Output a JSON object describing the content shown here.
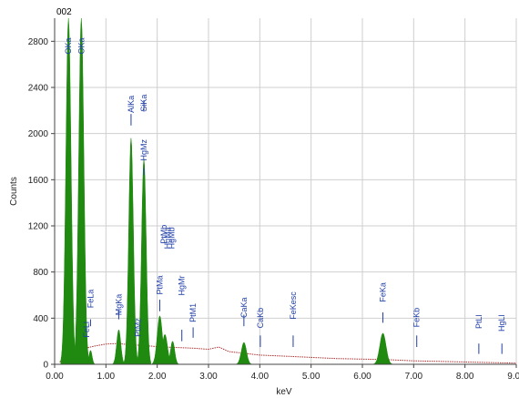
{
  "chart_data": {
    "type": "area",
    "sample_label": "002",
    "xlabel": "keV",
    "ylabel": "Counts",
    "xlim": [
      0.0,
      9.0
    ],
    "ylim": [
      0,
      3000
    ],
    "x_ticks": [
      "0.00",
      "1.00",
      "2.00",
      "3.00",
      "4.00",
      "5.00",
      "6.00",
      "7.00",
      "8.00",
      "9.00"
    ],
    "y_ticks": [
      "0",
      "400",
      "800",
      "1200",
      "1600",
      "2000",
      "2400",
      "2800"
    ],
    "grid": true,
    "colors": {
      "spectrum_fill": "#1f8a0f",
      "background_trace": "#b03030",
      "grid": "#cfcfcf",
      "peak_label": "#1f3ea8"
    },
    "series": [
      {
        "type": "filled-peaks",
        "peaks": [
          {
            "x": 0.27,
            "height": 3000,
            "width": 0.05
          },
          {
            "x": 0.52,
            "height": 3000,
            "width": 0.05
          },
          {
            "x": 0.7,
            "height": 120,
            "width": 0.03
          },
          {
            "x": 1.25,
            "height": 300,
            "width": 0.04
          },
          {
            "x": 1.49,
            "height": 1960,
            "width": 0.045
          },
          {
            "x": 1.74,
            "height": 1780,
            "width": 0.045
          },
          {
            "x": 2.05,
            "height": 420,
            "width": 0.05
          },
          {
            "x": 2.15,
            "height": 260,
            "width": 0.05
          },
          {
            "x": 2.3,
            "height": 200,
            "width": 0.04
          },
          {
            "x": 3.69,
            "height": 190,
            "width": 0.05
          },
          {
            "x": 6.4,
            "height": 270,
            "width": 0.06
          }
        ]
      },
      {
        "type": "background",
        "points": [
          [
            0.1,
            20
          ],
          [
            0.2,
            60
          ],
          [
            0.4,
            110
          ],
          [
            0.6,
            140
          ],
          [
            0.8,
            160
          ],
          [
            1.0,
            175
          ],
          [
            1.2,
            180
          ],
          [
            1.5,
            170
          ],
          [
            1.8,
            160
          ],
          [
            2.1,
            150
          ],
          [
            2.4,
            145
          ],
          [
            2.7,
            140
          ],
          [
            3.0,
            130
          ],
          [
            3.2,
            150
          ],
          [
            3.4,
            110
          ],
          [
            3.6,
            100
          ],
          [
            4.0,
            80
          ],
          [
            4.5,
            70
          ],
          [
            5.0,
            60
          ],
          [
            5.5,
            50
          ],
          [
            6.0,
            45
          ],
          [
            6.5,
            40
          ],
          [
            7.0,
            30
          ],
          [
            7.5,
            25
          ],
          [
            8.0,
            20
          ],
          [
            8.5,
            15
          ],
          [
            9.0,
            10
          ]
        ]
      }
    ],
    "annotations": [
      {
        "label": "OKa",
        "x": 0.27,
        "top_y": 2830,
        "line_y": [
          0,
          0
        ]
      },
      {
        "label": "OKa",
        "x": 0.52,
        "top_y": 2830,
        "line_y": [
          0,
          0
        ]
      },
      {
        "label": "FeLa",
        "x": 0.7,
        "top_y": 650,
        "line_y": [
          330,
          390
        ]
      },
      {
        "label": "FeLl",
        "x": 0.62,
        "top_y": 370,
        "line_y": [
          0,
          0
        ]
      },
      {
        "label": "MgKa",
        "x": 1.25,
        "top_y": 610,
        "line_y": [
          390,
          470
        ]
      },
      {
        "label": "PtMz",
        "x": 1.62,
        "top_y": 400,
        "line_y": [
          0,
          0
        ]
      },
      {
        "label": "AlKa",
        "x": 1.49,
        "top_y": 2330,
        "line_y": [
          2070,
          2170
        ]
      },
      {
        "label": "SiKa",
        "x": 1.74,
        "top_y": 2340,
        "line_y": [
          2190,
          2290
        ]
      },
      {
        "label": "HgMz",
        "x": 1.74,
        "top_y": 1950,
        "line_y": [
          1640,
          1700
        ]
      },
      {
        "label": "PtMa",
        "x": 2.05,
        "top_y": 770,
        "line_y": [
          460,
          560
        ]
      },
      {
        "label": "PtMb",
        "x": 2.13,
        "top_y": 1210,
        "line_y": [
          0,
          0
        ]
      },
      {
        "label": "HgMa",
        "x": 2.2,
        "top_y": 1190,
        "line_y": [
          0,
          0
        ]
      },
      {
        "label": "HgMb",
        "x": 2.28,
        "top_y": 1190,
        "line_y": [
          0,
          0
        ]
      },
      {
        "label": "HgMr",
        "x": 2.48,
        "top_y": 770,
        "line_y": [
          200,
          300
        ]
      },
      {
        "label": "PtM1",
        "x": 2.7,
        "top_y": 530,
        "line_y": [
          230,
          320
        ]
      },
      {
        "label": "CaKa",
        "x": 3.69,
        "top_y": 580,
        "line_y": [
          330,
          430
        ]
      },
      {
        "label": "CaKb",
        "x": 4.01,
        "top_y": 490,
        "line_y": [
          150,
          250
        ]
      },
      {
        "label": "FeKesc",
        "x": 4.65,
        "top_y": 630,
        "line_y": [
          150,
          250
        ]
      },
      {
        "label": "FeKa",
        "x": 6.4,
        "top_y": 710,
        "line_y": [
          360,
          450
        ]
      },
      {
        "label": "FeKb",
        "x": 7.06,
        "top_y": 490,
        "line_y": [
          150,
          250
        ]
      },
      {
        "label": "PtLl",
        "x": 8.27,
        "top_y": 430,
        "line_y": [
          90,
          180
        ]
      },
      {
        "label": "HgLl",
        "x": 8.72,
        "top_y": 430,
        "line_y": [
          90,
          180
        ]
      }
    ]
  }
}
